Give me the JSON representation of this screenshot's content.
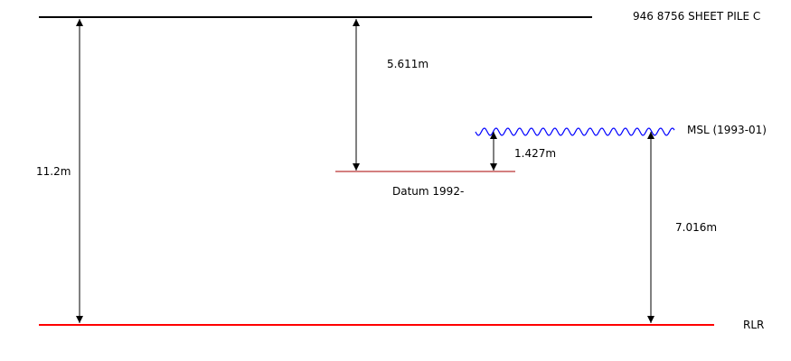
{
  "labels": {
    "benchmark": "946 8756 SHEET PILE C",
    "msl": "MSL (1993-01)",
    "datum": "Datum 1992-",
    "rlr": "RLR"
  },
  "dimensions": {
    "total": "11.2m",
    "benchmark_to_datum": "5.611m",
    "datum_to_msl": "1.427m",
    "msl_to_rlr": "7.016m"
  },
  "colors": {
    "benchmark_line": "#000000",
    "datum_line": "#aa0000",
    "msl_wave": "#0000ff",
    "rlr_line": "#ff0000",
    "arrows": "#000000"
  }
}
